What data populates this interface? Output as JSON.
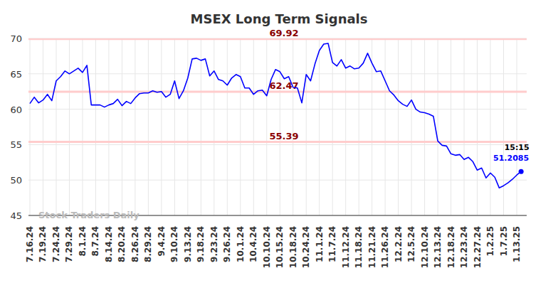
{
  "chart_data": {
    "type": "line",
    "title": "MSEX Long Term Signals",
    "watermark": "Stock Traders Daily",
    "categories": [
      "7.16.24",
      null,
      null,
      "7.19.24",
      null,
      null,
      "7.24.24",
      null,
      null,
      "7.29.24",
      null,
      null,
      "8.1.24",
      null,
      null,
      "8.7.24",
      null,
      null,
      "8.14.24",
      null,
      null,
      "8.20.24",
      null,
      null,
      "8.26.24",
      null,
      null,
      "8.29.24",
      null,
      null,
      "9.4.24",
      null,
      null,
      "9.10.24",
      null,
      null,
      "9.13.24",
      null,
      null,
      "9.18.24",
      null,
      null,
      "9.23.24",
      null,
      null,
      "9.26.24",
      null,
      null,
      "10.1.24",
      null,
      null,
      "10.4.24",
      null,
      null,
      "10.10.24",
      null,
      null,
      "10.15.24",
      null,
      null,
      "10.18.24",
      null,
      null,
      "10.24.24",
      null,
      null,
      "11.1.24",
      null,
      null,
      "11.7.24",
      null,
      null,
      "11.12.24",
      null,
      null,
      "11.18.24",
      null,
      null,
      "11.21.24",
      null,
      null,
      "11.26.24",
      null,
      null,
      "12.2.24",
      null,
      null,
      "12.5.24",
      null,
      null,
      "12.10.24",
      null,
      null,
      "12.13.24",
      null,
      null,
      "12.18.24",
      null,
      null,
      "12.23.24",
      null,
      null,
      "12.27.24",
      null,
      null,
      "1.2.25",
      null,
      null,
      "1.7.25",
      null,
      null,
      "1.13.25",
      null
    ],
    "values": [
      60.8,
      61.7,
      60.9,
      61.3,
      62.1,
      61.2,
      64.0,
      64.6,
      65.4,
      65.0,
      65.4,
      65.8,
      65.2,
      66.2,
      60.6,
      60.6,
      60.6,
      60.3,
      60.6,
      60.8,
      61.4,
      60.5,
      61.1,
      60.8,
      61.6,
      62.2,
      62.3,
      62.3,
      62.6,
      62.4,
      62.5,
      61.7,
      62.1,
      64.0,
      61.5,
      62.6,
      64.4,
      67.1,
      67.2,
      66.9,
      67.1,
      64.7,
      65.4,
      64.2,
      64.0,
      63.4,
      64.4,
      64.9,
      64.6,
      63.0,
      63.0,
      62.1,
      62.6,
      62.7,
      61.9,
      64.2,
      65.6,
      65.3,
      64.3,
      64.6,
      63.1,
      63.0,
      60.9,
      64.9,
      64.0,
      66.4,
      68.3,
      69.2,
      69.3,
      66.6,
      66.1,
      67.0,
      65.8,
      66.1,
      65.7,
      65.8,
      66.5,
      67.9,
      66.5,
      65.3,
      65.4,
      64.0,
      62.6,
      62.0,
      61.2,
      60.7,
      60.4,
      61.3,
      60.0,
      59.6,
      59.5,
      59.3,
      59.0,
      55.5,
      54.9,
      54.8,
      53.7,
      53.5,
      53.6,
      52.9,
      53.2,
      52.6,
      51.4,
      51.7,
      50.3,
      51.0,
      50.4,
      48.9,
      49.2,
      49.6,
      50.1,
      50.7,
      51.2085
    ],
    "color": "#0000ff",
    "hlines": [
      69.92,
      62.47,
      55.39
    ],
    "last_label": "15:15",
    "ylim": [
      45,
      70
    ],
    "yticks": [
      45,
      50,
      55,
      60,
      65,
      70
    ],
    "grid": true
  }
}
